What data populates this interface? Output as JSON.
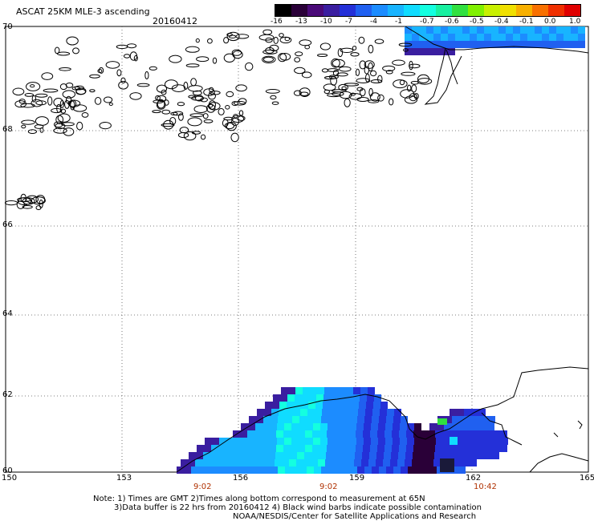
{
  "header": {
    "title": "ASCAT 25KM MLE-3 ascending",
    "date": "20160412"
  },
  "colorbar": {
    "labels": [
      "-16",
      "-13",
      "-10",
      "-7",
      "-4",
      "-1",
      "-0.7",
      "-0.6",
      "-0.5",
      "-0.4",
      "-0.1",
      "0.0",
      "1.0"
    ],
    "colors": [
      "#000000",
      "#2a0038",
      "#4a0a78",
      "#3a1ea0",
      "#2430d8",
      "#2060f0",
      "#1c8cff",
      "#18b4ff",
      "#10dcff",
      "#14ffe0",
      "#18f0a0",
      "#30e040",
      "#80f000",
      "#c8f000",
      "#f0e000",
      "#f8b000",
      "#f87000",
      "#f03000",
      "#e00000"
    ]
  },
  "axes": {
    "x_ticks": [
      "150",
      "153",
      "156",
      "159",
      "162",
      "165"
    ],
    "y_ticks": [
      "70",
      "68",
      "66",
      "64",
      "62",
      "60"
    ]
  },
  "times": [
    "9:02",
    "9:02",
    "10:42"
  ],
  "notes": {
    "line1": "Note: 1) Times are GMT 2)Times along bottom correspond to measurement at 65N",
    "line2": "3)Data buffer is 22 hrs from 20160412 4) Black wind barbs indicate possible contamination",
    "line3": "NOAA/NESDIS/Center for Satellite Applications and Research"
  }
}
